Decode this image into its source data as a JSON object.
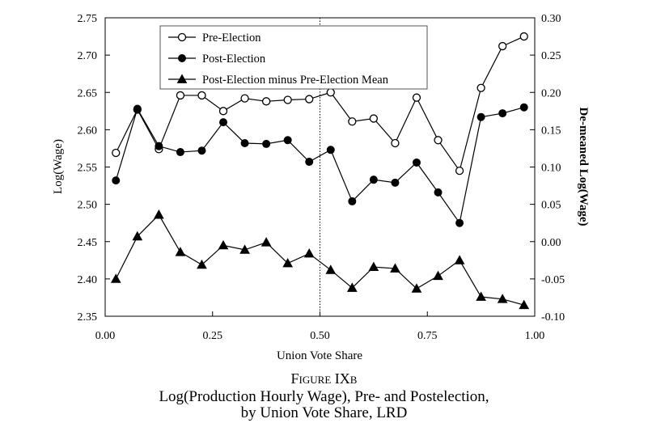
{
  "figure_label": "Figure IXb",
  "caption_line1": "Log(Production Hourly Wage), Pre- and Postelection,",
  "caption_line2": "by Union Vote Share, LRD",
  "chart_data": {
    "type": "line",
    "xlabel": "Union Vote Share",
    "ylabel_left": "Log(Wage)",
    "ylabel_right": "De-meaned Log(Wage)",
    "xlim": [
      0.0,
      1.0
    ],
    "ylim_left": [
      2.35,
      2.75
    ],
    "ylim_right": [
      -0.1,
      0.3
    ],
    "x_ticks": [
      "0.00",
      "0.25",
      "0.50",
      "0.75",
      "1.00"
    ],
    "x_tick_values": [
      0.0,
      0.25,
      0.5,
      0.75,
      1.0
    ],
    "y_left_ticks": [
      "2.35",
      "2.40",
      "2.45",
      "2.50",
      "2.55",
      "2.60",
      "2.65",
      "2.70",
      "2.75"
    ],
    "y_left_tick_values": [
      2.35,
      2.4,
      2.45,
      2.5,
      2.55,
      2.6,
      2.65,
      2.7,
      2.75
    ],
    "y_right_ticks": [
      "-0.10",
      "-0.05",
      "0.00",
      "0.05",
      "0.10",
      "0.15",
      "0.20",
      "0.25",
      "0.30"
    ],
    "y_right_tick_values": [
      -0.1,
      -0.05,
      0.0,
      0.05,
      0.1,
      0.15,
      0.2,
      0.25,
      0.3
    ],
    "reference_line_x": 0.5,
    "legend_position": "top-left",
    "x": [
      0.025,
      0.075,
      0.125,
      0.175,
      0.225,
      0.275,
      0.325,
      0.375,
      0.425,
      0.475,
      0.525,
      0.575,
      0.625,
      0.675,
      0.725,
      0.775,
      0.825,
      0.875,
      0.925,
      0.975
    ],
    "series": [
      {
        "name": "Pre-Election",
        "axis": "left",
        "marker": "open-circle",
        "values": [
          2.569,
          2.627,
          2.574,
          2.646,
          2.646,
          2.625,
          2.642,
          2.638,
          2.64,
          2.641,
          2.65,
          2.611,
          2.615,
          2.582,
          2.643,
          2.586,
          2.545,
          2.656,
          2.712,
          2.725
        ]
      },
      {
        "name": "Post-Election",
        "axis": "left",
        "marker": "filled-circle",
        "values": [
          2.532,
          2.628,
          2.578,
          2.57,
          2.572,
          2.61,
          2.582,
          2.581,
          2.586,
          2.557,
          2.573,
          2.504,
          2.533,
          2.529,
          2.556,
          2.516,
          2.475,
          2.617,
          2.622,
          2.63
        ]
      },
      {
        "name": "Post-Election minus Pre-Election Mean",
        "axis": "right",
        "marker": "filled-triangle",
        "values": [
          -0.05,
          0.007,
          0.036,
          -0.014,
          -0.031,
          -0.005,
          -0.011,
          -0.001,
          -0.029,
          -0.016,
          -0.038,
          -0.062,
          -0.034,
          -0.036,
          -0.063,
          -0.046,
          -0.025,
          -0.074,
          -0.077,
          -0.085
        ]
      }
    ]
  }
}
